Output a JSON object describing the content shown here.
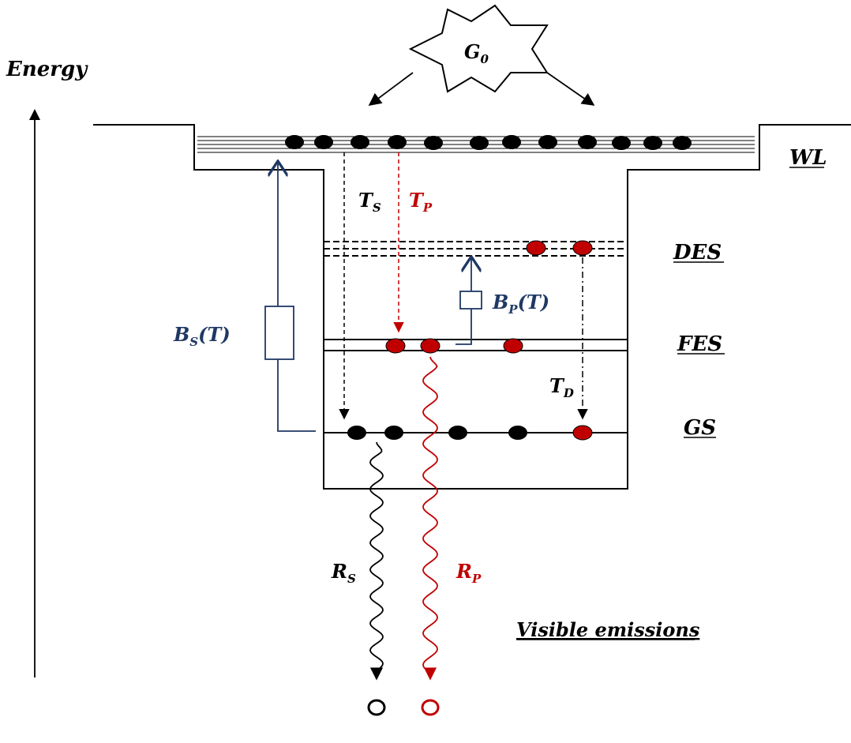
{
  "axis": {
    "label": "Energy"
  },
  "source": {
    "label": "G",
    "subscript": "0"
  },
  "levels": {
    "wl": "WL",
    "des": "DES",
    "fes": "FES",
    "gs": "GS"
  },
  "transitions": {
    "ts": {
      "main": "T",
      "sub": "S"
    },
    "tp": {
      "main": "T",
      "sub": "P"
    },
    "td": {
      "main": "T",
      "sub": "D"
    },
    "bs": {
      "main": "B",
      "sub": "S",
      "arg": "(T)"
    },
    "bp": {
      "main": "B",
      "sub": "P",
      "arg": "(T)"
    },
    "rs": {
      "main": "R",
      "sub": "S"
    },
    "rp": {
      "main": "R",
      "sub": "P"
    }
  },
  "emissions": {
    "label": "Visible emissions"
  },
  "colors": {
    "black": "#000000",
    "red": "#c00000",
    "navy": "#1f3864",
    "dot_red": "#c00000"
  }
}
